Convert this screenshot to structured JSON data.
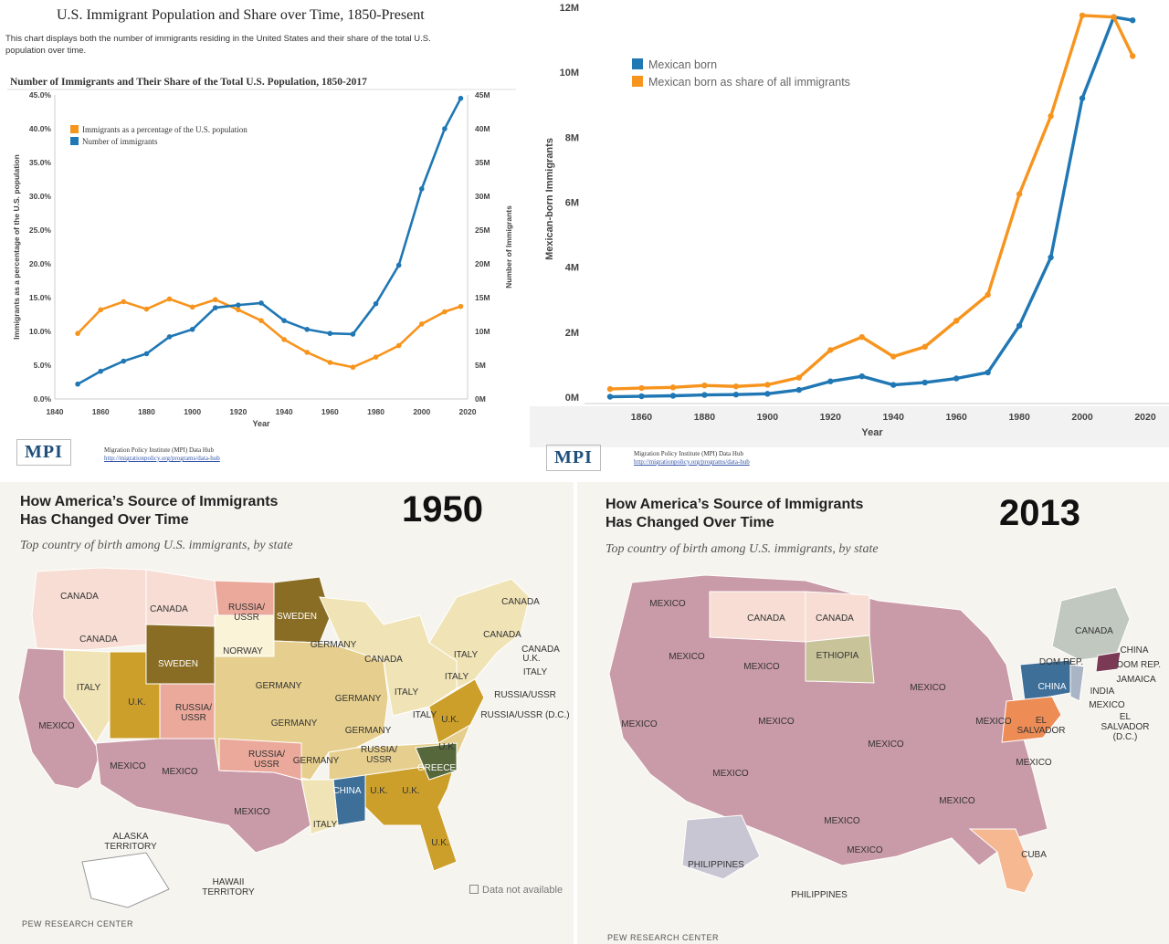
{
  "panel1": {
    "page_title": "U.S. Immigrant Population and Share over Time, 1850-Present",
    "description": "This chart displays both the number of immigrants residing in the United States and their share of the total U.S. population over time.",
    "mpi_logo": "MPI",
    "mpi_line1": "Migration Policy Institute (MPI) Data Hub",
    "mpi_line2": "http://migrationpolicy.org/programs/data-hub"
  },
  "panel2": {
    "mpi_logo": "MPI",
    "mpi_line1": "Migration Policy Institute (MPI) Data Hub",
    "mpi_line2": "http://migrationpolicy.org/programs/data-hub"
  },
  "chart_data": [
    {
      "type": "line",
      "title": "Number of Immigrants and Their Share of the Total U.S. Population, 1850-2017",
      "xlabel": "Year",
      "ylabel": "Immigrants as a percentage of the U.S. population",
      "y2label": "Number of Immigrants",
      "xlim": [
        1840,
        2020
      ],
      "xticks": [
        "1840",
        "1860",
        "1880",
        "1900",
        "1920",
        "1940",
        "1960",
        "1980",
        "2000",
        "2020"
      ],
      "ylim": [
        0,
        45
      ],
      "yticks": [
        "0.0%",
        "5.0%",
        "10.0%",
        "15.0%",
        "20.0%",
        "25.0%",
        "30.0%",
        "35.0%",
        "40.0%",
        "45.0%"
      ],
      "y2lim": [
        0,
        45
      ],
      "y2ticks": [
        "0M",
        "5M",
        "10M",
        "15M",
        "20M",
        "25M",
        "30M",
        "35M",
        "40M",
        "45M"
      ],
      "legend": "top-left",
      "grid": false,
      "x": [
        1850,
        1860,
        1870,
        1880,
        1890,
        1900,
        1910,
        1920,
        1930,
        1940,
        1950,
        1960,
        1970,
        1980,
        1990,
        2000,
        2010,
        2017
      ],
      "series": [
        {
          "name": "Immigrants as a percentage of the U.S. population",
          "color": "#f7941d",
          "axis": "left",
          "values": [
            9.7,
            13.2,
            14.4,
            13.3,
            14.8,
            13.6,
            14.7,
            13.2,
            11.6,
            8.8,
            6.9,
            5.4,
            4.7,
            6.2,
            7.9,
            11.1,
            12.9,
            13.7
          ]
        },
        {
          "name": "Number of immigrants",
          "color": "#1f77b4",
          "axis": "right",
          "values": [
            2.2,
            4.1,
            5.6,
            6.7,
            9.2,
            10.3,
            13.5,
            13.9,
            14.2,
            11.6,
            10.3,
            9.7,
            9.6,
            14.1,
            19.8,
            31.1,
            40.0,
            44.5
          ]
        }
      ]
    },
    {
      "type": "line",
      "title": "",
      "xlabel": "Year",
      "ylabel": "Mexican-born Immigrants",
      "xlim": [
        1850,
        2020
      ],
      "xticks": [
        "1860",
        "1880",
        "1900",
        "1920",
        "1940",
        "1960",
        "1980",
        "2000",
        "2020"
      ],
      "ylim": [
        0,
        12
      ],
      "yticks": [
        "0M",
        "2M",
        "4M",
        "6M",
        "8M",
        "10M",
        "12M"
      ],
      "legend": "top-left",
      "x": [
        1850,
        1860,
        1870,
        1880,
        1890,
        1900,
        1910,
        1920,
        1930,
        1940,
        1950,
        1960,
        1970,
        1980,
        1990,
        2000,
        2010,
        2016
      ],
      "series": [
        {
          "name": "Mexican born",
          "color": "#1f77b4",
          "values": [
            0.013,
            0.027,
            0.042,
            0.068,
            0.078,
            0.103,
            0.222,
            0.486,
            0.641,
            0.377,
            0.451,
            0.576,
            0.76,
            2.2,
            4.3,
            9.2,
            11.7,
            11.6
          ]
        },
        {
          "name": "Mexican born as share of all immigrants",
          "color": "#f7941d",
          "values": [
            0.25,
            0.28,
            0.3,
            0.36,
            0.33,
            0.38,
            0.6,
            1.45,
            1.85,
            1.25,
            1.55,
            2.35,
            3.15,
            6.25,
            8.65,
            11.75,
            11.7,
            10.5
          ]
        }
      ]
    }
  ],
  "maps": {
    "title": "How America’s Source of Immigrants Has Changed Over Time",
    "subtitle": "Top country of birth among U.S. immigrants, by state",
    "credit": "PEW RESEARCH CENTER",
    "m1950": {
      "year": "1950",
      "no_data": "Data not available",
      "labels": [
        "CANADA",
        "CANADA",
        "CANADA",
        "RUSSIA/ USSR",
        "SWEDEN",
        "CANADA",
        "SWEDEN",
        "NORWAY",
        "GERMANY",
        "CANADA",
        "ITALY",
        "U.K.",
        "RUSSIA/ USSR",
        "MEXICO",
        "GERMANY",
        "GERMANY",
        "ITALY",
        "ITALY",
        "GERMANY",
        "GERMANY",
        "ITALY",
        "U.K.",
        "MEXICO",
        "MEXICO",
        "RUSSIA/ USSR",
        "GERMANY",
        "RUSSIA/ USSR",
        "U.K.",
        "GREECE",
        "CHINA",
        "U.K.",
        "U.K.",
        "MEXICO",
        "ITALY",
        "U.K.",
        "CANADA",
        "ITALY",
        "CANADA",
        "U.K.",
        "ITALY",
        "RUSSIA/USSR",
        "RUSSIA/USSR (D.C.)",
        "ALASKA TERRITORY",
        "HAWAII TERRITORY"
      ]
    },
    "m2013": {
      "year": "2013",
      "labels": [
        "MEXICO",
        "MEXICO",
        "CANADA",
        "CANADA",
        "ETHIOPIA",
        "MEXICO",
        "MEXICO",
        "MEXICO",
        "MEXICO",
        "MEXICO",
        "MEXICO",
        "MEXICO",
        "MEXICO",
        "MEXICO",
        "MEXICO",
        "CANADA",
        "DOM REP.",
        "CHINA",
        "EL SALVADOR",
        "CHINA",
        "DOM REP.",
        "JAMAICA",
        "INDIA",
        "MEXICO",
        "EL SALVADOR (D.C.)",
        "MEXICO",
        "CUBA",
        "PHILIPPINES",
        "PHILIPPINES"
      ]
    }
  },
  "colors": {
    "mexico": "#c99aa8",
    "canada": "#f7ddd3",
    "sweden": "#8a6d25",
    "germany": "#e6cf8e",
    "italy": "#f0e4b6",
    "uk": "#cc9f2b",
    "russia": "#eba99b",
    "norway": "#fbf3d8",
    "china": "#3d6f99",
    "greece": "#56673b",
    "ethiopia": "#c9c39a",
    "domrep": "#c0c8c0",
    "elsalvador": "#ee8c55",
    "cuba": "#f5b891",
    "philippines": "#c9c6d4",
    "jamaica": "#7a3a55"
  }
}
